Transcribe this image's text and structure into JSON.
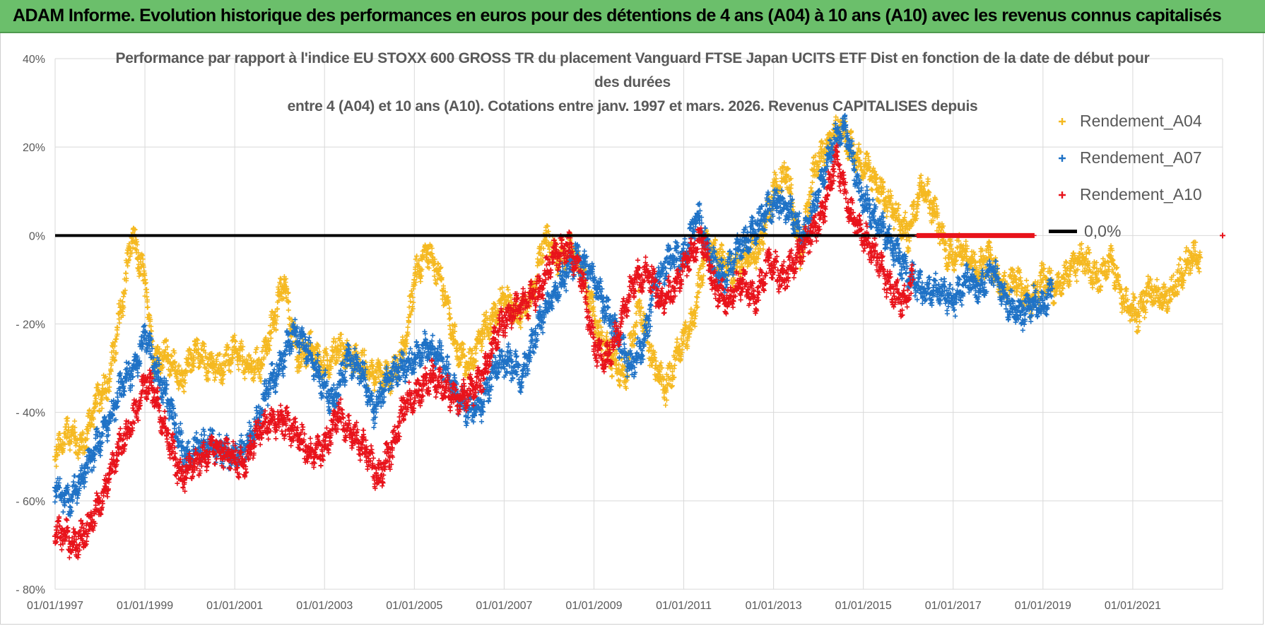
{
  "banner": {
    "title": "ADAM Informe. Evolution historique des performances en euros pour des détentions de 4 ans (A04) à 10 ans (A10) avec les revenus connus capitalisés"
  },
  "chart_data": {
    "type": "scatter",
    "title_lines": [
      "Performance par rapport à l'indice EU STOXX 600 GROSS TR  du placement Vanguard FTSE Japan UCITS ETF Dist en fonction de la date de début pour",
      "des durées",
      "entre 4 (A04) et 10 ans (A10). Cotations entre janv. 1997 et mars. 2026. Revenus CAPITALISES depuis"
    ],
    "x_ticks": [
      "01/01/1997",
      "01/01/1999",
      "01/01/2001",
      "01/01/2003",
      "01/01/2005",
      "01/01/2007",
      "01/01/2009",
      "01/01/2011",
      "01/01/2013",
      "01/01/2015",
      "01/01/2017",
      "01/01/2019",
      "01/01/2021"
    ],
    "y_ticks": [
      "40%",
      "20%",
      "0%",
      "- 20%",
      "- 40%",
      "- 60%",
      "- 80%"
    ],
    "ylim": [
      -80,
      40
    ],
    "xlim": [
      1997.0,
      2023.0
    ],
    "grid": true,
    "legend_position": "right",
    "reference_line": {
      "name": "0,0%",
      "value": 0,
      "color": "#000000"
    },
    "series": [
      {
        "name": "Rendement_A04",
        "color": "#f5b921",
        "x": [
          1997.0,
          1997.3,
          1997.6,
          1997.9,
          1998.2,
          1998.5,
          1998.7,
          1998.85,
          1999.0,
          1999.2,
          1999.5,
          1999.8,
          2000.1,
          2000.4,
          2000.7,
          2001.0,
          2001.3,
          2001.6,
          2001.9,
          2002.1,
          2002.4,
          2002.7,
          2003.0,
          2003.3,
          2003.6,
          2003.9,
          2004.2,
          2004.5,
          2004.8,
          2005.0,
          2005.3,
          2005.6,
          2005.9,
          2006.2,
          2006.5,
          2006.8,
          2007.0,
          2007.3,
          2007.6,
          2007.9,
          2008.2,
          2008.5,
          2008.8,
          2009.1,
          2009.4,
          2009.7,
          2010.0,
          2010.3,
          2010.6,
          2010.9,
          2011.2,
          2011.5,
          2011.8,
          2012.1,
          2012.4,
          2012.7,
          2013.0,
          2013.3,
          2013.6,
          2013.9,
          2014.2,
          2014.5,
          2014.8,
          2015.1,
          2015.4,
          2015.7,
          2016.0,
          2016.3,
          2016.6,
          2016.9,
          2017.2,
          2017.5,
          2017.8,
          2018.1,
          2018.4,
          2018.7,
          2019.0,
          2019.3,
          2019.6,
          2019.9,
          2020.2,
          2020.5,
          2020.8,
          2021.1,
          2021.4,
          2021.7,
          2022.0,
          2022.3,
          2022.5
        ],
        "y": [
          -50,
          -44,
          -48,
          -38,
          -33,
          -15,
          0,
          -5,
          -10,
          -28,
          -27,
          -33,
          -26,
          -29,
          -30,
          -26,
          -30,
          -29,
          -18,
          -10,
          -28,
          -25,
          -30,
          -25,
          -28,
          -30,
          -32,
          -32,
          -25,
          -10,
          -3,
          -10,
          -24,
          -30,
          -22,
          -18,
          -14,
          -18,
          -15,
          0,
          -5,
          -3,
          -10,
          -22,
          -28,
          -32,
          -15,
          -28,
          -35,
          -25,
          -20,
          -2,
          -5,
          -8,
          -5,
          -3,
          10,
          15,
          -5,
          15,
          20,
          25,
          18,
          15,
          10,
          5,
          0,
          12,
          5,
          -5,
          -3,
          -8,
          -5,
          -12,
          -10,
          -15,
          -10,
          -12,
          -8,
          -5,
          -10,
          -5,
          -15,
          -18,
          -12,
          -15,
          -10,
          -5,
          -5
        ]
      },
      {
        "name": "Rendement_A07",
        "color": "#1f72c6",
        "x": [
          1997.0,
          1997.3,
          1997.6,
          1997.9,
          1998.2,
          1998.5,
          1998.8,
          1999.0,
          1999.3,
          1999.6,
          1999.9,
          2000.2,
          2000.5,
          2000.8,
          2001.1,
          2001.4,
          2001.7,
          2002.0,
          2002.3,
          2002.6,
          2002.9,
          2003.2,
          2003.5,
          2003.8,
          2004.1,
          2004.4,
          2004.7,
          2005.0,
          2005.3,
          2005.6,
          2005.9,
          2006.2,
          2006.5,
          2006.8,
          2007.1,
          2007.4,
          2007.7,
          2008.0,
          2008.3,
          2008.6,
          2008.9,
          2009.2,
          2009.5,
          2009.8,
          2010.1,
          2010.4,
          2010.7,
          2011.0,
          2011.3,
          2011.6,
          2011.9,
          2012.2,
          2012.5,
          2012.8,
          2013.1,
          2013.4,
          2013.7,
          2014.0,
          2014.3,
          2014.6,
          2014.9,
          2015.2,
          2015.5,
          2015.8,
          2016.1,
          2016.4,
          2016.7,
          2017.0,
          2017.3,
          2017.6,
          2017.9,
          2018.2,
          2018.5,
          2018.8,
          2019.0,
          2019.2
        ],
        "y": [
          -57,
          -60,
          -55,
          -48,
          -42,
          -33,
          -30,
          -22,
          -32,
          -40,
          -50,
          -48,
          -47,
          -49,
          -50,
          -45,
          -35,
          -30,
          -22,
          -25,
          -32,
          -38,
          -28,
          -30,
          -40,
          -32,
          -30,
          -28,
          -25,
          -28,
          -35,
          -40,
          -38,
          -30,
          -28,
          -32,
          -22,
          -15,
          -10,
          -5,
          -8,
          -15,
          -22,
          -30,
          -25,
          -10,
          -5,
          -5,
          5,
          -5,
          -10,
          -3,
          0,
          5,
          8,
          5,
          0,
          10,
          20,
          25,
          10,
          5,
          0,
          -5,
          -10,
          -13,
          -12,
          -15,
          -10,
          -12,
          -8,
          -15,
          -18,
          -15,
          -16,
          -12
        ]
      },
      {
        "name": "Rendement_A10",
        "color": "#e8131b",
        "x": [
          1997.0,
          1997.2,
          1997.4,
          1997.6,
          1997.8,
          1998.0,
          1998.2,
          1998.4,
          1998.6,
          1998.8,
          1999.0,
          1999.2,
          1999.4,
          1999.6,
          1999.8,
          2000.0,
          2000.3,
          2000.6,
          2000.9,
          2001.2,
          2001.5,
          2001.8,
          2002.1,
          2002.4,
          2002.7,
          2003.0,
          2003.3,
          2003.6,
          2003.9,
          2004.2,
          2004.5,
          2004.8,
          2005.1,
          2005.4,
          2005.7,
          2006.0,
          2006.3,
          2006.6,
          2006.9,
          2007.2,
          2007.5,
          2007.8,
          2008.1,
          2008.4,
          2008.7,
          2009.0,
          2009.3,
          2009.6,
          2009.9,
          2010.2,
          2010.5,
          2010.8,
          2011.1,
          2011.4,
          2011.7,
          2012.0,
          2012.3,
          2012.6,
          2012.9,
          2013.2,
          2013.5,
          2013.8,
          2014.1,
          2014.4,
          2014.7,
          2015.0,
          2015.3,
          2015.6,
          2015.9,
          2016.1
        ],
        "y": [
          -68,
          -67,
          -70,
          -68,
          -65,
          -60,
          -55,
          -48,
          -45,
          -40,
          -33,
          -35,
          -42,
          -48,
          -55,
          -52,
          -50,
          -48,
          -50,
          -52,
          -45,
          -42,
          -42,
          -45,
          -50,
          -48,
          -40,
          -45,
          -48,
          -55,
          -48,
          -38,
          -35,
          -32,
          -35,
          -37,
          -35,
          -30,
          -20,
          -17,
          -15,
          -12,
          -5,
          -2,
          -8,
          -25,
          -28,
          -20,
          -10,
          -8,
          -15,
          -12,
          -5,
          0,
          -12,
          -15,
          -10,
          -15,
          -5,
          -10,
          -5,
          0,
          5,
          18,
          5,
          0,
          -5,
          -12,
          -15,
          -10
        ]
      }
    ],
    "legend": [
      "Rendement_A04",
      "Rendement_A07",
      "Rendement_A10",
      "0,0%"
    ]
  }
}
